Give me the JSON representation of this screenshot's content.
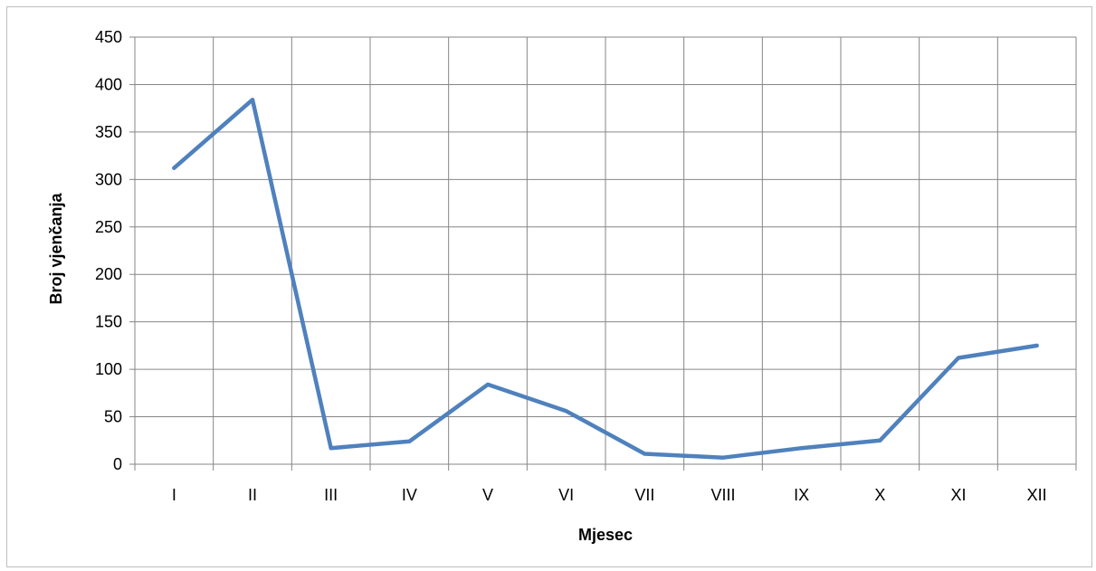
{
  "chart_data": {
    "type": "line",
    "title": "",
    "xlabel": "Mjesec",
    "ylabel": "Broj vjenčanja",
    "categories": [
      "I",
      "II",
      "III",
      "IV",
      "V",
      "VI",
      "VII",
      "VIII",
      "IX",
      "X",
      "XI",
      "XII"
    ],
    "series": [
      {
        "values": [
          312,
          384,
          17,
          24,
          84,
          56,
          11,
          7,
          17,
          25,
          112,
          125
        ]
      }
    ],
    "ylim": [
      0,
      450
    ],
    "yticks": [
      0,
      50,
      100,
      150,
      200,
      250,
      300,
      350,
      400,
      450
    ],
    "grid": true,
    "legend": "none",
    "line_color": "#4F81BD",
    "grid_color": "#868686"
  }
}
